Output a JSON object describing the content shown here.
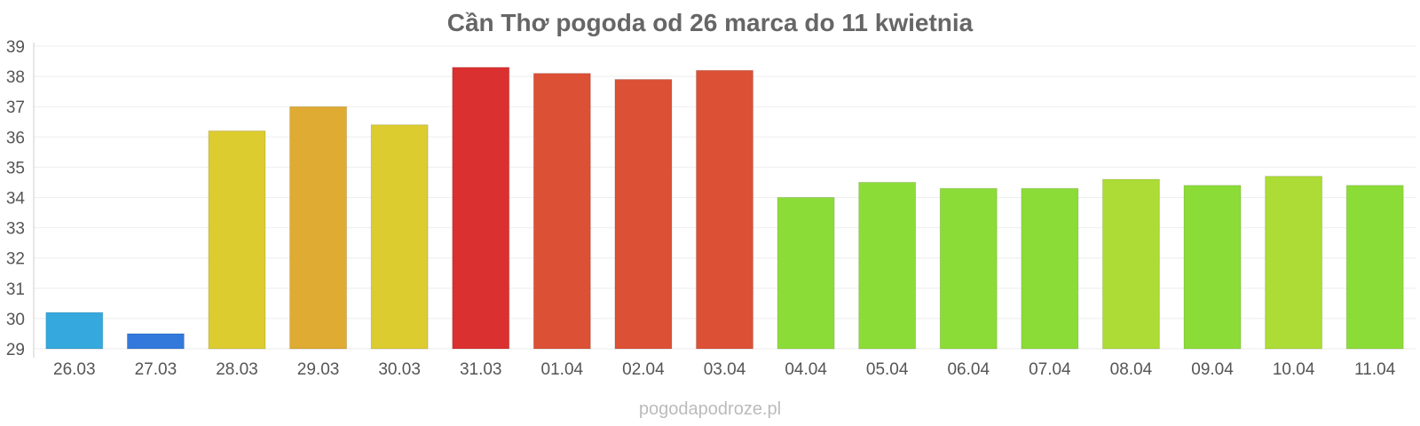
{
  "chart_data": {
    "type": "bar",
    "title": "Cần Thơ pogoda od 26 marca do 11 kwietnia",
    "xlabel": "",
    "ylabel": "",
    "categories": [
      "26.03",
      "27.03",
      "28.03",
      "29.03",
      "30.03",
      "31.03",
      "01.04",
      "02.04",
      "03.04",
      "04.04",
      "05.04",
      "06.04",
      "07.04",
      "08.04",
      "09.04",
      "10.04",
      "11.04"
    ],
    "values": [
      30.2,
      29.5,
      36.2,
      37.0,
      36.4,
      38.3,
      38.1,
      37.9,
      38.2,
      34.0,
      34.5,
      34.3,
      34.3,
      34.6,
      34.4,
      34.7,
      34.4
    ],
    "colors": [
      "#35a8dd",
      "#3279db",
      "#dccc30",
      "#dfab33",
      "#dccc30",
      "#db3030",
      "#dc5035",
      "#dc5035",
      "#dc5035",
      "#8cdc38",
      "#8cdc38",
      "#8cdc38",
      "#8cdc38",
      "#acdc35",
      "#8cdc38",
      "#acdc35",
      "#8cdc38"
    ],
    "ylim": [
      29,
      39
    ],
    "yticks": [
      29,
      30,
      31,
      32,
      33,
      34,
      35,
      36,
      37,
      38,
      39
    ],
    "grid": true,
    "legend": "none"
  },
  "watermark": "pogodapodroze.pl"
}
